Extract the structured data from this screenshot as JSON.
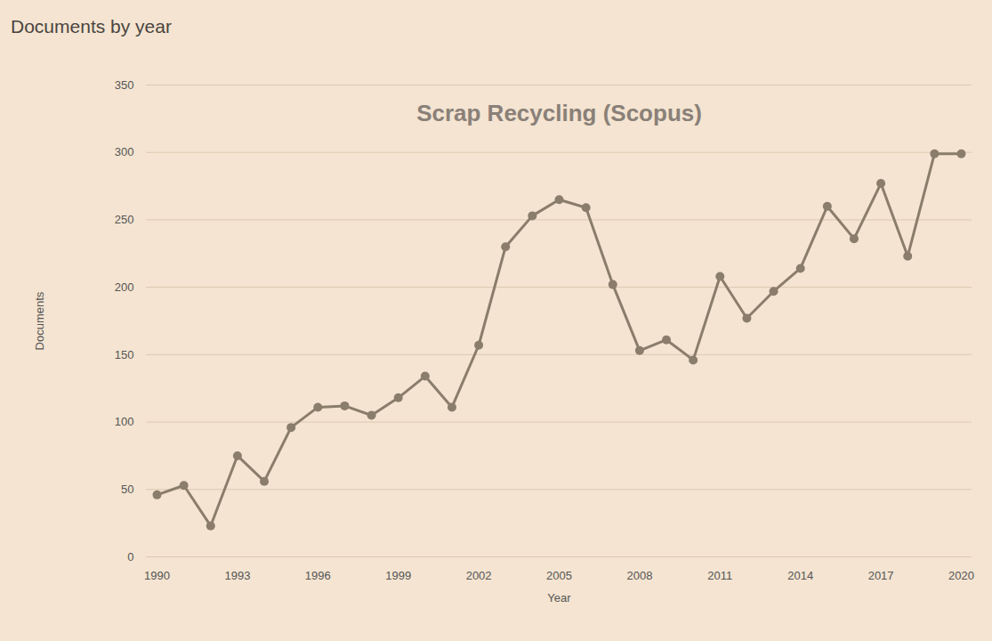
{
  "chart_data": {
    "type": "line",
    "title": "Scrap Recycling (Scopus)",
    "subtitle": "Documents by year",
    "x_label": "Year",
    "y_label": "Documents",
    "x": [
      1990,
      1991,
      1992,
      1993,
      1994,
      1995,
      1996,
      1997,
      1998,
      1999,
      2000,
      2001,
      2002,
      2003,
      2004,
      2005,
      2006,
      2007,
      2008,
      2009,
      2010,
      2011,
      2012,
      2013,
      2014,
      2015,
      2016,
      2017,
      2018,
      2019,
      2020
    ],
    "values": [
      46,
      53,
      23,
      75,
      56,
      96,
      111,
      112,
      105,
      118,
      134,
      111,
      157,
      230,
      253,
      265,
      259,
      202,
      153,
      161,
      146,
      208,
      177,
      197,
      214,
      260,
      236,
      277,
      223,
      299,
      299
    ],
    "color": "#8b7d6b",
    "marker": "circle",
    "xlim": [
      1990,
      2020
    ],
    "xticks": [
      1990,
      1993,
      1996,
      1999,
      2002,
      2005,
      2008,
      2011,
      2014,
      2017,
      2020
    ],
    "ylim": [
      0,
      350
    ],
    "yticks": [
      0,
      50,
      100,
      150,
      200,
      250,
      300,
      350
    ],
    "grid": true
  }
}
